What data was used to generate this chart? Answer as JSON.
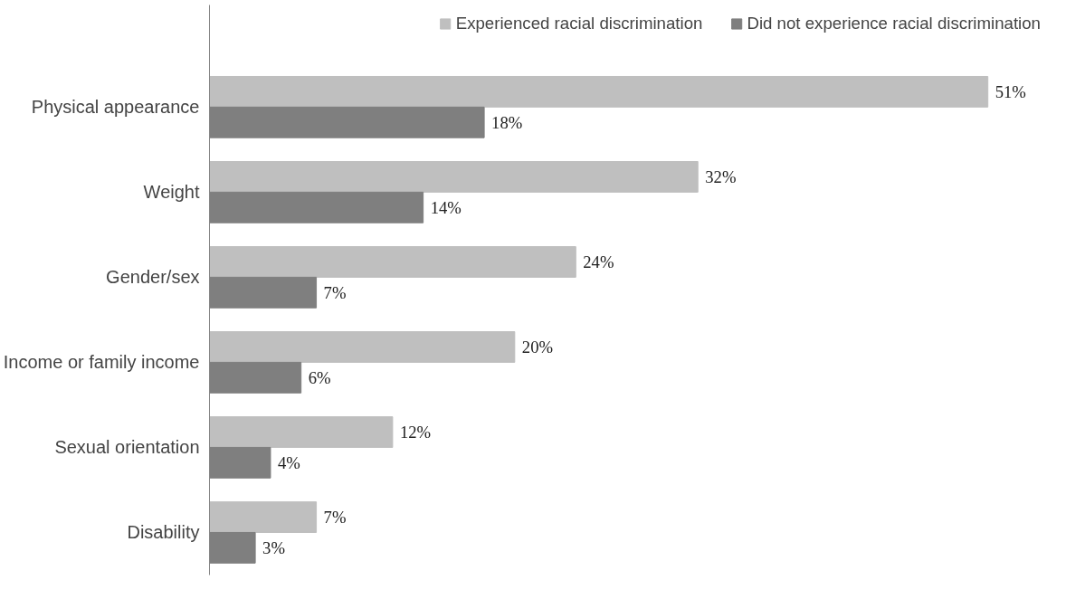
{
  "chart_data": {
    "type": "bar",
    "orientation": "horizontal",
    "legend": "top",
    "grid": false,
    "categories": [
      "Physical appearance",
      "Weight",
      "Gender/sex",
      "Income or family income",
      "Sexual orientation",
      "Disability"
    ],
    "series": [
      {
        "name": "Experienced racial discrimination",
        "color": "#bfbfbf",
        "values": [
          51,
          32,
          24,
          20,
          12,
          7
        ],
        "value_labels": [
          "51%",
          "32%",
          "24%",
          "20%",
          "12%",
          "7%"
        ]
      },
      {
        "name": "Did not experience racial discrimination",
        "color": "#7f7f7f",
        "values": [
          18,
          14,
          7,
          6,
          4,
          3
        ],
        "value_labels": [
          "18%",
          "14%",
          "7%",
          "6%",
          "4%",
          "3%"
        ]
      }
    ]
  }
}
